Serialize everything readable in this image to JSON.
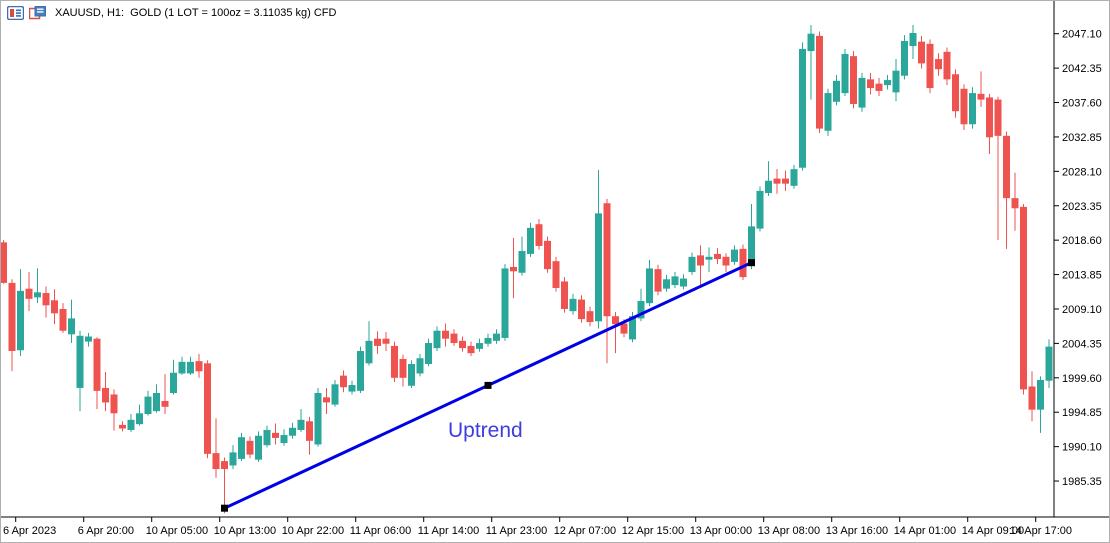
{
  "header": {
    "symbol_line": "XAUUSD, H1:  GOLD (1 LOT = 100oz = 3.11035 kg) CFD"
  },
  "toolbar_icons": [
    {
      "name": "quotes-panel-icon"
    },
    {
      "name": "chart-window-icon"
    }
  ],
  "chart_data": {
    "type": "candlestick",
    "symbol": "XAUUSD",
    "timeframe": "H1",
    "title": "XAUUSD, H1:  GOLD (1 LOT = 100oz = 3.11035 kg) CFD",
    "grid": false,
    "legend": "none",
    "y_axis": {
      "side": "right",
      "ticks": [
        "2047.10",
        "2042.35",
        "2037.60",
        "2032.85",
        "2028.10",
        "2023.35",
        "2018.60",
        "2013.85",
        "2009.10",
        "2004.35",
        "1999.60",
        "1994.85",
        "1990.10",
        "1985.35"
      ],
      "max": 2047.1,
      "min": 1985.35,
      "step": 4.75
    },
    "x_axis": {
      "labels": [
        "6 Apr 2023",
        "6 Apr 20:00",
        "10 Apr 05:00",
        "10 Apr 13:00",
        "10 Apr 22:00",
        "11 Apr 06:00",
        "11 Apr 14:00",
        "11 Apr 23:00",
        "12 Apr 07:00",
        "12 Apr 15:00",
        "13 Apr 00:00",
        "13 Apr 08:00",
        "13 Apr 16:00",
        "14 Apr 01:00",
        "14 Apr 09:00",
        "14 Apr 17:00"
      ]
    },
    "colors": {
      "bull": "#2aa79a",
      "bear": "#ef5350",
      "trendline": "#0000e6",
      "trendline_anchor": "#000000",
      "annotation_text": "#3d3de0",
      "axis": "#000000",
      "background": "#ffffff"
    },
    "candles_ohlc": [
      [
        2018.3,
        2018.6,
        2012.6,
        2012.7
      ],
      [
        2012.7,
        2013.2,
        2000.5,
        2003.3
      ],
      [
        2003.4,
        2014.6,
        2002.6,
        2011.6
      ],
      [
        2011.9,
        2014.2,
        2008.8,
        2010.5
      ],
      [
        2010.7,
        2014.7,
        2009.9,
        2011.4
      ],
      [
        2011.3,
        2012.2,
        2007.9,
        2009.6
      ],
      [
        2010.3,
        2011.8,
        2007.0,
        2008.5
      ],
      [
        2009.1,
        2009.9,
        2005.8,
        2006.1
      ],
      [
        2005.6,
        2010.4,
        2004.4,
        2007.8
      ],
      [
        1998.2,
        2006.1,
        1995.0,
        2005.4
      ],
      [
        2004.6,
        2005.8,
        2003.9,
        2005.3
      ],
      [
        2005.0,
        2005.2,
        1995.3,
        1997.8
      ],
      [
        1998.2,
        2000.4,
        1995.0,
        1996.2
      ],
      [
        1997.3,
        1998.0,
        1992.3,
        1994.7
      ],
      [
        1993.1,
        1993.6,
        1992.2,
        1992.6
      ],
      [
        1992.4,
        1994.6,
        1992.1,
        1993.8
      ],
      [
        1993.2,
        1995.9,
        1993.0,
        1994.7
      ],
      [
        1994.6,
        1997.8,
        1994.4,
        1997.0
      ],
      [
        1995.0,
        1998.7,
        1994.8,
        1997.5
      ],
      [
        1996.4,
        2000.1,
        1994.6,
        1995.6
      ],
      [
        1997.5,
        2002.1,
        1997.3,
        2000.3
      ],
      [
        2000.2,
        2002.5,
        2000.0,
        2001.8
      ],
      [
        2000.2,
        2002.5,
        2000.0,
        2001.8
      ],
      [
        2001.9,
        2002.9,
        1999.6,
        2000.5
      ],
      [
        2001.6,
        2002.0,
        1988.5,
        1989.1
      ],
      [
        1989.2,
        1994.0,
        1985.8,
        1987.0
      ],
      [
        1988.1,
        1988.6,
        1980.9,
        1987.0
      ],
      [
        1987.5,
        1990.3,
        1987.0,
        1989.3
      ],
      [
        1988.4,
        1992.0,
        1988.1,
        1991.4
      ],
      [
        1990.9,
        1991.5,
        1988.5,
        1989.0
      ],
      [
        1988.3,
        1992.2,
        1988.0,
        1991.6
      ],
      [
        1990.3,
        1993.0,
        1990.0,
        1992.4
      ],
      [
        1992.0,
        1993.3,
        1990.4,
        1991.3
      ],
      [
        1990.6,
        1992.5,
        1990.2,
        1991.7
      ],
      [
        1991.6,
        1993.4,
        1991.2,
        1992.7
      ],
      [
        1992.4,
        1995.3,
        1992.1,
        1993.8
      ],
      [
        1993.6,
        1994.2,
        1989.0,
        1990.9
      ],
      [
        1990.4,
        1998.2,
        1990.1,
        1997.5
      ],
      [
        1996.9,
        1998.2,
        1994.6,
        1996.2
      ],
      [
        1995.9,
        1999.3,
        1995.6,
        1998.7
      ],
      [
        1999.9,
        2000.6,
        1997.6,
        1998.3
      ],
      [
        1997.7,
        1999.2,
        1997.3,
        1998.6
      ],
      [
        1997.8,
        2003.9,
        1997.5,
        2003.3
      ],
      [
        2001.6,
        2007.4,
        2001.3,
        2004.7
      ],
      [
        2005.0,
        2006.0,
        2002.9,
        2004.0
      ],
      [
        2005.0,
        2005.9,
        2003.3,
        2004.3
      ],
      [
        2004.0,
        2004.6,
        1999.0,
        1999.6
      ],
      [
        2002.2,
        2002.8,
        1998.4,
        1999.6
      ],
      [
        1998.5,
        2002.0,
        1998.2,
        2001.5
      ],
      [
        2000.2,
        2002.9,
        1999.8,
        2002.3
      ],
      [
        2001.5,
        2005.0,
        2001.2,
        2004.4
      ],
      [
        2003.7,
        2006.7,
        2003.3,
        2006.1
      ],
      [
        2006.1,
        2007.1,
        2003.9,
        2005.0
      ],
      [
        2005.7,
        2006.3,
        2004.0,
        2004.4
      ],
      [
        2004.7,
        2005.3,
        2003.2,
        2003.7
      ],
      [
        2004.0,
        2004.6,
        2002.6,
        2003.0
      ],
      [
        2003.6,
        2005.0,
        2003.2,
        2004.4
      ],
      [
        2004.3,
        2005.7,
        2003.9,
        2005.1
      ],
      [
        2004.7,
        2006.3,
        2004.3,
        2005.7
      ],
      [
        2005.1,
        2015.3,
        2004.7,
        2014.7
      ],
      [
        2014.9,
        2018.9,
        2010.6,
        2014.3
      ],
      [
        2014.1,
        2019.1,
        2013.7,
        2017.1
      ],
      [
        2016.7,
        2021.0,
        2016.3,
        2020.3
      ],
      [
        2020.8,
        2021.5,
        2017.3,
        2017.8
      ],
      [
        2018.5,
        2019.1,
        2014.1,
        2014.6
      ],
      [
        2015.7,
        2016.3,
        2011.5,
        2012.0
      ],
      [
        2012.9,
        2013.5,
        2008.6,
        2009.1
      ],
      [
        2008.8,
        2011.2,
        2008.3,
        2010.5
      ],
      [
        2010.4,
        2011.0,
        2007.2,
        2007.7
      ],
      [
        2008.8,
        2009.4,
        2006.7,
        2007.3
      ],
      [
        2007.4,
        2028.3,
        2006.4,
        2022.3
      ],
      [
        2023.7,
        2024.3,
        2001.6,
        2008.1
      ],
      [
        2008.1,
        2008.7,
        2003.0,
        2007.0
      ],
      [
        2007.1,
        2007.7,
        2005.2,
        2005.7
      ],
      [
        2004.9,
        2008.7,
        2004.5,
        2008.1
      ],
      [
        2007.8,
        2011.9,
        2007.4,
        2010.2
      ],
      [
        2009.9,
        2015.9,
        2009.5,
        2014.7
      ],
      [
        2014.6,
        2015.2,
        2011.0,
        2011.5
      ],
      [
        2011.9,
        2013.8,
        2011.5,
        2013.2
      ],
      [
        2012.4,
        2014.2,
        2012.0,
        2013.6
      ],
      [
        2012.2,
        2013.9,
        2011.8,
        2013.3
      ],
      [
        2014.2,
        2016.9,
        2013.8,
        2016.3
      ],
      [
        2016.5,
        2017.9,
        2012.4,
        2015.1
      ],
      [
        2015.9,
        2017.6,
        2014.2,
        2016.3
      ],
      [
        2016.7,
        2017.5,
        2015.3,
        2016.0
      ],
      [
        2016.3,
        2016.8,
        2014.2,
        2015.1
      ],
      [
        2015.6,
        2017.9,
        2015.2,
        2017.3
      ],
      [
        2017.4,
        2018.0,
        2013.1,
        2013.5
      ],
      [
        2015.0,
        2023.6,
        2014.6,
        2020.5
      ],
      [
        2020.2,
        2026.0,
        2019.8,
        2025.4
      ],
      [
        2025.1,
        2029.5,
        2024.7,
        2026.8
      ],
      [
        2027.1,
        2028.4,
        2025.0,
        2026.4
      ],
      [
        2027.1,
        2028.2,
        2025.4,
        2026.4
      ],
      [
        2026.1,
        2029.0,
        2025.7,
        2028.4
      ],
      [
        2028.6,
        2045.9,
        2028.2,
        2045.0
      ],
      [
        2044.7,
        2048.3,
        2038.0,
        2047.1
      ],
      [
        2046.8,
        2047.4,
        2033.4,
        2034.0
      ],
      [
        2033.7,
        2039.5,
        2033.0,
        2038.9
      ],
      [
        2037.7,
        2041.4,
        2037.2,
        2040.6
      ],
      [
        2038.9,
        2045.0,
        2038.5,
        2044.3
      ],
      [
        2044.0,
        2044.7,
        2036.8,
        2037.4
      ],
      [
        2036.9,
        2041.7,
        2036.3,
        2041.0
      ],
      [
        2040.8,
        2041.7,
        2038.7,
        2039.6
      ],
      [
        2040.2,
        2041.0,
        2038.5,
        2039.2
      ],
      [
        2040.0,
        2041.4,
        2039.4,
        2040.7
      ],
      [
        2039.0,
        2043.6,
        2037.8,
        2042.0
      ],
      [
        2041.3,
        2046.9,
        2040.8,
        2046.1
      ],
      [
        2045.4,
        2048.3,
        2043.6,
        2047.2
      ],
      [
        2046.0,
        2046.8,
        2042.3,
        2043.0
      ],
      [
        2045.7,
        2046.3,
        2038.9,
        2039.6
      ],
      [
        2043.6,
        2044.4,
        2041.3,
        2042.2
      ],
      [
        2044.6,
        2045.2,
        2040.0,
        2040.8
      ],
      [
        2041.5,
        2042.2,
        2035.5,
        2036.4
      ],
      [
        2039.5,
        2040.1,
        2033.8,
        2034.6
      ],
      [
        2034.6,
        2039.7,
        2034.0,
        2038.9
      ],
      [
        2038.8,
        2041.9,
        2037.0,
        2038.0
      ],
      [
        2038.3,
        2038.8,
        2030.5,
        2032.8
      ],
      [
        2038.0,
        2038.4,
        2018.6,
        2033.0
      ],
      [
        2033.0,
        2033.6,
        2017.4,
        2024.4
      ],
      [
        2024.4,
        2027.9,
        2019.9,
        2023.0
      ],
      [
        2023.2,
        2023.6,
        1997.3,
        1998.0
      ],
      [
        1998.4,
        2000.5,
        1993.6,
        1995.2
      ],
      [
        1995.2,
        1999.8,
        1992.0,
        1999.3
      ],
      [
        1999.2,
        2004.9,
        1998.2,
        2003.9
      ]
    ],
    "annotations": {
      "trendline": {
        "label": "Uptrend",
        "from_bar": 26,
        "from_price": 1981.6,
        "to_bar": 88,
        "to_price": 2015.5
      }
    }
  }
}
